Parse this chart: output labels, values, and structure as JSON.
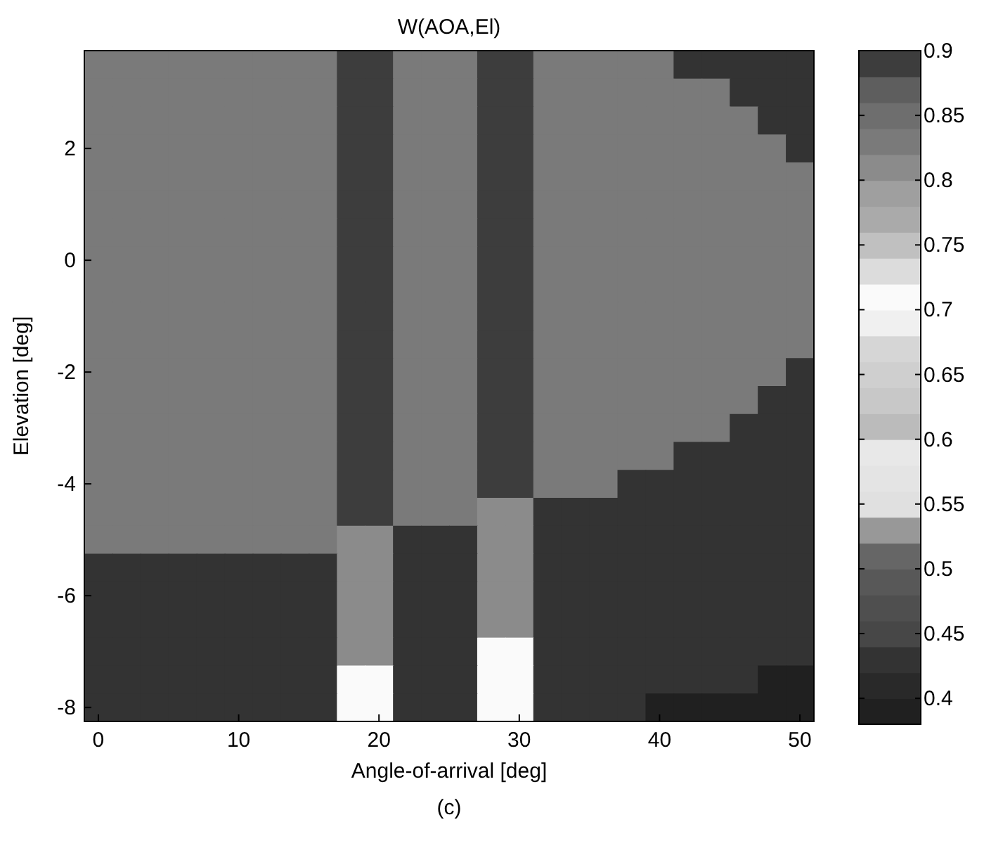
{
  "chart_data": {
    "type": "heatmap",
    "title": "W(AOA,El)",
    "xlabel": "Angle-of-arrival [deg]",
    "ylabel": "Elevation [deg]",
    "annotations": [
      "(c)"
    ],
    "categories": [
      "0",
      null,
      null,
      null,
      null,
      "10",
      null,
      null,
      null,
      null,
      "20",
      null,
      null,
      null,
      null,
      "30",
      null,
      null,
      null,
      null,
      "40",
      null,
      null,
      null,
      null,
      "50"
    ],
    "y_categories": [
      null,
      null,
      null,
      "2",
      null,
      null,
      null,
      "0",
      null,
      null,
      null,
      "-2",
      null,
      null,
      null,
      "-4",
      null,
      null,
      null,
      "-6",
      null,
      null,
      null,
      "-8"
    ],
    "cells": [
      [
        0.83,
        0.83,
        0.83,
        0.83,
        0.83,
        0.83,
        0.83,
        0.83,
        0.83,
        0.89,
        0.89,
        0.83,
        0.83,
        0.83,
        0.89,
        0.89,
        0.83,
        0.83,
        0.83,
        0.83,
        0.83,
        0.43,
        0.43,
        0.43,
        0.43,
        0.43
      ],
      [
        0.83,
        0.83,
        0.83,
        0.83,
        0.83,
        0.83,
        0.83,
        0.83,
        0.83,
        0.89,
        0.89,
        0.83,
        0.83,
        0.83,
        0.89,
        0.89,
        0.83,
        0.83,
        0.83,
        0.83,
        0.83,
        0.83,
        0.83,
        0.43,
        0.43,
        0.43
      ],
      [
        0.83,
        0.83,
        0.83,
        0.83,
        0.83,
        0.83,
        0.83,
        0.83,
        0.83,
        0.89,
        0.89,
        0.83,
        0.83,
        0.83,
        0.89,
        0.89,
        0.83,
        0.83,
        0.83,
        0.83,
        0.83,
        0.83,
        0.83,
        0.83,
        0.43,
        0.43
      ],
      [
        0.83,
        0.83,
        0.83,
        0.83,
        0.83,
        0.83,
        0.83,
        0.83,
        0.83,
        0.89,
        0.89,
        0.83,
        0.83,
        0.83,
        0.89,
        0.89,
        0.83,
        0.83,
        0.83,
        0.83,
        0.83,
        0.83,
        0.83,
        0.83,
        0.83,
        0.43
      ],
      [
        0.83,
        0.83,
        0.83,
        0.83,
        0.83,
        0.83,
        0.83,
        0.83,
        0.83,
        0.89,
        0.89,
        0.83,
        0.83,
        0.83,
        0.89,
        0.89,
        0.83,
        0.83,
        0.83,
        0.83,
        0.83,
        0.83,
        0.83,
        0.83,
        0.83,
        0.83
      ],
      [
        0.83,
        0.83,
        0.83,
        0.83,
        0.83,
        0.83,
        0.83,
        0.83,
        0.83,
        0.89,
        0.89,
        0.83,
        0.83,
        0.83,
        0.89,
        0.89,
        0.83,
        0.83,
        0.83,
        0.83,
        0.83,
        0.83,
        0.83,
        0.83,
        0.83,
        0.83
      ],
      [
        0.83,
        0.83,
        0.83,
        0.83,
        0.83,
        0.83,
        0.83,
        0.83,
        0.83,
        0.89,
        0.89,
        0.83,
        0.83,
        0.83,
        0.89,
        0.89,
        0.83,
        0.83,
        0.83,
        0.83,
        0.83,
        0.83,
        0.83,
        0.83,
        0.83,
        0.83
      ],
      [
        0.83,
        0.83,
        0.83,
        0.83,
        0.83,
        0.83,
        0.83,
        0.83,
        0.83,
        0.89,
        0.89,
        0.83,
        0.83,
        0.83,
        0.89,
        0.89,
        0.83,
        0.83,
        0.83,
        0.83,
        0.83,
        0.83,
        0.83,
        0.83,
        0.83,
        0.83
      ],
      [
        0.83,
        0.83,
        0.83,
        0.83,
        0.83,
        0.83,
        0.83,
        0.83,
        0.83,
        0.89,
        0.89,
        0.83,
        0.83,
        0.83,
        0.89,
        0.89,
        0.83,
        0.83,
        0.83,
        0.83,
        0.83,
        0.83,
        0.83,
        0.83,
        0.83,
        0.83
      ],
      [
        0.83,
        0.83,
        0.83,
        0.83,
        0.83,
        0.83,
        0.83,
        0.83,
        0.83,
        0.89,
        0.89,
        0.83,
        0.83,
        0.83,
        0.89,
        0.89,
        0.83,
        0.83,
        0.83,
        0.83,
        0.83,
        0.83,
        0.83,
        0.83,
        0.83,
        0.83
      ],
      [
        0.83,
        0.83,
        0.83,
        0.83,
        0.83,
        0.83,
        0.83,
        0.83,
        0.83,
        0.89,
        0.89,
        0.83,
        0.83,
        0.83,
        0.89,
        0.89,
        0.83,
        0.83,
        0.83,
        0.83,
        0.83,
        0.83,
        0.83,
        0.83,
        0.83,
        0.83
      ],
      [
        0.83,
        0.83,
        0.83,
        0.83,
        0.83,
        0.83,
        0.83,
        0.83,
        0.83,
        0.89,
        0.89,
        0.83,
        0.83,
        0.83,
        0.89,
        0.89,
        0.83,
        0.83,
        0.83,
        0.83,
        0.83,
        0.83,
        0.83,
        0.83,
        0.83,
        0.43
      ],
      [
        0.83,
        0.83,
        0.83,
        0.83,
        0.83,
        0.83,
        0.83,
        0.83,
        0.83,
        0.89,
        0.89,
        0.83,
        0.83,
        0.83,
        0.89,
        0.89,
        0.83,
        0.83,
        0.83,
        0.83,
        0.83,
        0.83,
        0.83,
        0.83,
        0.43,
        0.43
      ],
      [
        0.83,
        0.83,
        0.83,
        0.83,
        0.83,
        0.83,
        0.83,
        0.83,
        0.83,
        0.89,
        0.89,
        0.83,
        0.83,
        0.83,
        0.89,
        0.89,
        0.83,
        0.83,
        0.83,
        0.83,
        0.83,
        0.83,
        0.83,
        0.43,
        0.43,
        0.43
      ],
      [
        0.83,
        0.83,
        0.83,
        0.83,
        0.83,
        0.83,
        0.83,
        0.83,
        0.83,
        0.89,
        0.89,
        0.83,
        0.83,
        0.83,
        0.89,
        0.89,
        0.83,
        0.83,
        0.83,
        0.83,
        0.83,
        0.43,
        0.43,
        0.43,
        0.43,
        0.43
      ],
      [
        0.83,
        0.83,
        0.83,
        0.83,
        0.83,
        0.83,
        0.83,
        0.83,
        0.83,
        0.89,
        0.89,
        0.83,
        0.83,
        0.83,
        0.89,
        0.89,
        0.83,
        0.83,
        0.83,
        0.43,
        0.43,
        0.43,
        0.43,
        0.43,
        0.43,
        0.43
      ],
      [
        0.83,
        0.83,
        0.83,
        0.83,
        0.83,
        0.83,
        0.83,
        0.83,
        0.83,
        0.89,
        0.89,
        0.83,
        0.83,
        0.83,
        0.81,
        0.81,
        0.43,
        0.43,
        0.43,
        0.43,
        0.43,
        0.43,
        0.43,
        0.43,
        0.43,
        0.43
      ],
      [
        0.83,
        0.83,
        0.83,
        0.83,
        0.83,
        0.83,
        0.83,
        0.83,
        0.83,
        0.81,
        0.81,
        0.43,
        0.43,
        0.43,
        0.81,
        0.81,
        0.43,
        0.43,
        0.43,
        0.43,
        0.43,
        0.43,
        0.43,
        0.43,
        0.43,
        0.43
      ],
      [
        0.43,
        0.43,
        0.43,
        0.43,
        0.43,
        0.43,
        0.43,
        0.43,
        0.43,
        0.81,
        0.81,
        0.43,
        0.43,
        0.43,
        0.81,
        0.81,
        0.43,
        0.43,
        0.43,
        0.43,
        0.43,
        0.43,
        0.43,
        0.43,
        0.43,
        0.43
      ],
      [
        0.43,
        0.43,
        0.43,
        0.43,
        0.43,
        0.43,
        0.43,
        0.43,
        0.43,
        0.81,
        0.81,
        0.43,
        0.43,
        0.43,
        0.81,
        0.81,
        0.43,
        0.43,
        0.43,
        0.43,
        0.43,
        0.43,
        0.43,
        0.43,
        0.43,
        0.43
      ],
      [
        0.43,
        0.43,
        0.43,
        0.43,
        0.43,
        0.43,
        0.43,
        0.43,
        0.43,
        0.81,
        0.81,
        0.43,
        0.43,
        0.43,
        0.81,
        0.81,
        0.43,
        0.43,
        0.43,
        0.43,
        0.43,
        0.43,
        0.43,
        0.43,
        0.43,
        0.43
      ],
      [
        0.43,
        0.43,
        0.43,
        0.43,
        0.43,
        0.43,
        0.43,
        0.43,
        0.43,
        0.81,
        0.81,
        0.43,
        0.43,
        0.43,
        0.71,
        0.71,
        0.43,
        0.43,
        0.43,
        0.43,
        0.43,
        0.43,
        0.43,
        0.43,
        0.43,
        0.43
      ],
      [
        0.43,
        0.43,
        0.43,
        0.43,
        0.43,
        0.43,
        0.43,
        0.43,
        0.43,
        0.71,
        0.71,
        0.43,
        0.43,
        0.43,
        0.71,
        0.71,
        0.43,
        0.43,
        0.43,
        0.43,
        0.43,
        0.43,
        0.43,
        0.43,
        0.39,
        0.39
      ],
      [
        0.43,
        0.43,
        0.43,
        0.43,
        0.43,
        0.43,
        0.43,
        0.43,
        0.43,
        0.71,
        0.71,
        0.43,
        0.43,
        0.43,
        0.71,
        0.71,
        0.43,
        0.43,
        0.43,
        0.43,
        0.39,
        0.39,
        0.39,
        0.39,
        0.39,
        0.39
      ]
    ],
    "clim": [
      0.38,
      0.9
    ],
    "cticks": [
      0.4,
      0.45,
      0.5,
      0.55,
      0.6,
      0.65,
      0.7,
      0.75,
      0.8,
      0.85,
      0.9
    ]
  }
}
